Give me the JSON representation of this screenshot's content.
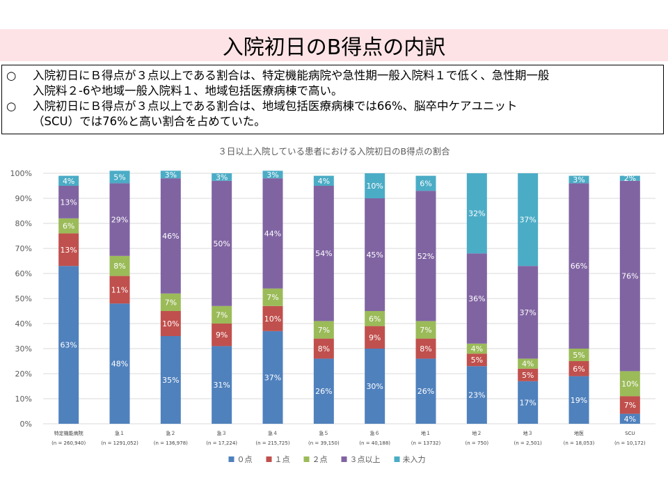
{
  "slide": {
    "title": "入院初日のB得点の内訳",
    "bullets": [
      {
        "mark": "○",
        "line1": "入院初日にＢ得点が３点以上である割合は、特定機能病院や急性期一般入院料１で低く、急性期一般",
        "line2": "入院料２-6や地域一般入院料１、地域包括医療病棟で高い。"
      },
      {
        "mark": "○",
        "line1": "入院初日にＢ得点が３点以上である割合は、地域包括医療病棟では66%、脳卒中ケアユニット",
        "line2": "（SCU）では76%と高い割合を占めていた。"
      }
    ]
  },
  "chart_data": {
    "type": "bar",
    "stacked": true,
    "title": "３日以上入院している患者における入院初日のB得点の割合",
    "categories": [
      "特定機能病院",
      "急１",
      "急２",
      "急３",
      "急４",
      "急５",
      "急６",
      "地１",
      "地２",
      "地３",
      "地医",
      "SCU"
    ],
    "category_n": [
      "(n = 260,940)",
      "(n = 1291,052)",
      "(n = 136,978)",
      "(n = 17,224)",
      "(n = 215,725)",
      "(n = 39,150)",
      "(n = 40,188)",
      "(n = 13732)",
      "(n = 750)",
      "(n = 2,501)",
      "(n = 18,053)",
      "(n = 10,172)"
    ],
    "series": [
      {
        "name": "０点",
        "color": "#4f81bd",
        "values": [
          63,
          48,
          35,
          31,
          37,
          26,
          30,
          26,
          23,
          17,
          19,
          4
        ]
      },
      {
        "name": "１点",
        "color": "#c0504d",
        "values": [
          13,
          11,
          10,
          9,
          10,
          8,
          9,
          8,
          5,
          5,
          6,
          7
        ]
      },
      {
        "name": "２点",
        "color": "#9bbb59",
        "values": [
          6,
          8,
          7,
          7,
          7,
          7,
          6,
          7,
          4,
          4,
          5,
          10
        ]
      },
      {
        "name": "３点以上",
        "color": "#8064a2",
        "values": [
          13,
          29,
          46,
          50,
          44,
          54,
          45,
          52,
          36,
          37,
          66,
          76
        ]
      },
      {
        "name": "未入力",
        "color": "#4bacc6",
        "values": [
          4,
          5,
          3,
          3,
          3,
          4,
          10,
          6,
          32,
          37,
          3,
          2
        ]
      }
    ],
    "y_ticks": [
      "0%",
      "10%",
      "20%",
      "30%",
      "40%",
      "50%",
      "60%",
      "70%",
      "80%",
      "90%",
      "100%"
    ],
    "ylim": [
      0,
      100
    ],
    "grid": true,
    "legend_position": "bottom"
  }
}
